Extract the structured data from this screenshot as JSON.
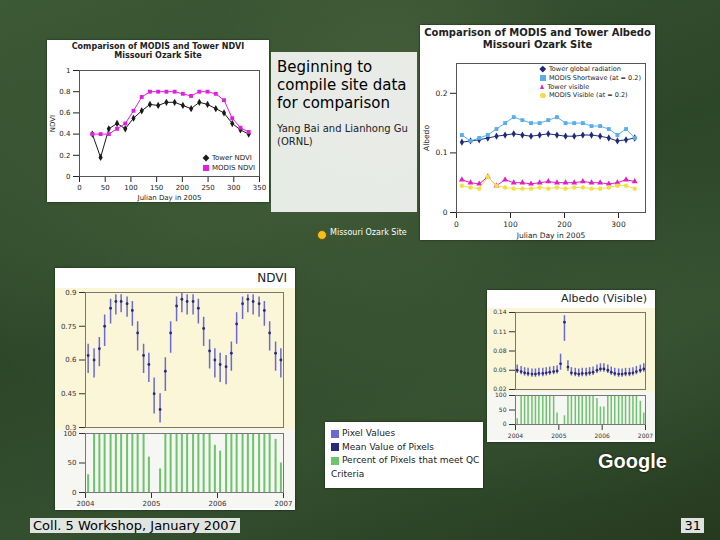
{
  "chart_data": [
    {
      "type": "line",
      "title": "Comparison of MODIS and Tower NDVI",
      "subtitle": "Missouri Ozark Site",
      "xlabel": "Julian Day in 2005",
      "ylabel": "NDVI",
      "x": [
        25,
        41,
        57,
        73,
        89,
        105,
        121,
        137,
        153,
        169,
        185,
        201,
        217,
        233,
        249,
        265,
        281,
        297,
        313,
        329
      ],
      "series": [
        {
          "name": "Tower NDVI",
          "color": "#1a1a1a",
          "marker": "diamond",
          "line_style": "solid",
          "values": [
            0.4,
            0.18,
            0.45,
            0.5,
            0.45,
            0.55,
            0.62,
            0.68,
            0.67,
            0.7,
            0.7,
            0.67,
            0.64,
            0.7,
            0.68,
            0.64,
            0.6,
            0.5,
            0.44,
            0.4
          ]
        },
        {
          "name": "MODIS NDVI",
          "color": "#e020e0",
          "marker": "square",
          "line_style": "solid",
          "values": [
            0.4,
            0.4,
            0.4,
            0.45,
            0.5,
            0.62,
            0.75,
            0.8,
            0.8,
            0.8,
            0.8,
            0.78,
            0.76,
            0.8,
            0.8,
            0.78,
            0.72,
            0.55,
            0.46,
            0.42
          ]
        }
      ],
      "xlim": [
        0,
        350
      ],
      "xticks": [
        0,
        50,
        100,
        150,
        200,
        250,
        300,
        350
      ],
      "ylim": [
        0,
        1
      ],
      "yticks": [
        0,
        0.2,
        0.4,
        0.6,
        0.8,
        1
      ],
      "grid": false,
      "legend": "lower right"
    },
    {
      "type": "line",
      "title": "Comparison of MODIS and Tower Albedo",
      "subtitle": "Missouri Ozark Site",
      "xlabel": "Julian Day in 2005",
      "ylabel": "Albedo",
      "x": [
        10,
        26,
        42,
        58,
        74,
        90,
        106,
        122,
        138,
        154,
        170,
        186,
        202,
        218,
        234,
        250,
        266,
        282,
        298,
        314,
        330
      ],
      "series": [
        {
          "name": "Tower global radiation",
          "color": "#1f2a7a",
          "marker": "diamond",
          "line_style": "solid",
          "values": [
            0.118,
            0.12,
            0.122,
            0.125,
            0.128,
            0.13,
            0.132,
            0.13,
            0.128,
            0.13,
            0.132,
            0.13,
            0.128,
            0.128,
            0.13,
            0.13,
            0.128,
            0.125,
            0.12,
            0.122,
            0.125
          ]
        },
        {
          "name": "MODIS Shortwave (at = 0.2)",
          "color": "#5aaee8",
          "marker": "square",
          "line_style": "solid",
          "values": [
            0.13,
            0.12,
            0.125,
            0.13,
            0.14,
            0.15,
            0.16,
            0.155,
            0.15,
            0.15,
            0.155,
            0.16,
            0.15,
            0.15,
            0.15,
            0.145,
            0.145,
            0.14,
            0.13,
            0.14,
            0.125
          ]
        },
        {
          "name": "Tower visible",
          "color": "#e020c0",
          "marker": "triangle",
          "line_style": "solid",
          "values": [
            0.055,
            0.05,
            0.048,
            0.06,
            0.045,
            0.055,
            0.05,
            0.05,
            0.048,
            0.05,
            0.052,
            0.05,
            0.05,
            0.05,
            0.052,
            0.05,
            0.05,
            0.048,
            0.05,
            0.055,
            0.052
          ]
        },
        {
          "name": "MODIS Visible (at = 0.2)",
          "color": "#f0e040",
          "marker": "circle",
          "line_style": "solid",
          "values": [
            0.045,
            0.042,
            0.04,
            0.06,
            0.045,
            0.042,
            0.04,
            0.04,
            0.04,
            0.042,
            0.04,
            0.042,
            0.04,
            0.042,
            0.042,
            0.04,
            0.04,
            0.042,
            0.045,
            0.045,
            0.04
          ]
        }
      ],
      "xlim": [
        0,
        350
      ],
      "xticks": [
        0,
        100,
        200,
        300
      ],
      "ylim": [
        0,
        0.25
      ],
      "yticks": [
        0,
        0.1,
        0.2
      ],
      "grid": false,
      "legend": "upper right"
    },
    {
      "type": "pixels",
      "title": "NDVI",
      "x": [
        2004.04,
        2004.13,
        2004.21,
        2004.29,
        2004.38,
        2004.46,
        2004.54,
        2004.63,
        2004.71,
        2004.79,
        2004.88,
        2004.96,
        2005.04,
        2005.13,
        2005.21,
        2005.29,
        2005.38,
        2005.46,
        2005.54,
        2005.63,
        2005.71,
        2005.79,
        2005.88,
        2005.96,
        2006.04,
        2006.13,
        2006.21,
        2006.29,
        2006.38,
        2006.46,
        2006.54,
        2006.63,
        2006.71,
        2006.79,
        2006.88,
        2006.96
      ],
      "series": [
        {
          "name": "Pixel Values",
          "type": "range",
          "color": "#6a6ad0",
          "low": [
            0.54,
            0.52,
            0.57,
            0.66,
            0.76,
            0.8,
            0.81,
            0.79,
            0.75,
            0.64,
            0.54,
            0.5,
            0.36,
            0.32,
            0.46,
            0.63,
            0.77,
            0.81,
            0.8,
            0.8,
            0.76,
            0.66,
            0.56,
            0.52,
            0.5,
            0.49,
            0.55,
            0.67,
            0.78,
            0.81,
            0.8,
            0.79,
            0.75,
            0.64,
            0.55,
            0.52
          ],
          "high": [
            0.67,
            0.65,
            0.7,
            0.8,
            0.87,
            0.89,
            0.89,
            0.88,
            0.86,
            0.77,
            0.67,
            0.63,
            0.52,
            0.45,
            0.61,
            0.77,
            0.88,
            0.9,
            0.89,
            0.89,
            0.87,
            0.79,
            0.69,
            0.65,
            0.63,
            0.62,
            0.68,
            0.81,
            0.88,
            0.89,
            0.89,
            0.88,
            0.86,
            0.77,
            0.68,
            0.65
          ]
        },
        {
          "name": "Mean Value of Pixels",
          "type": "scatter",
          "color": "#2a2a7a",
          "values": [
            0.62,
            0.6,
            0.65,
            0.75,
            0.83,
            0.86,
            0.86,
            0.85,
            0.82,
            0.72,
            0.62,
            0.58,
            0.45,
            0.38,
            0.55,
            0.72,
            0.84,
            0.87,
            0.86,
            0.86,
            0.83,
            0.74,
            0.64,
            0.6,
            0.58,
            0.57,
            0.63,
            0.76,
            0.85,
            0.87,
            0.86,
            0.85,
            0.82,
            0.72,
            0.63,
            0.6
          ]
        },
        {
          "name": "Percent of Pixels that meet QC Criteria",
          "type": "bar",
          "axis": "y2",
          "color": "#6cc46c",
          "values": [
            30,
            100,
            100,
            100,
            100,
            100,
            100,
            100,
            100,
            100,
            100,
            60,
            0,
            40,
            100,
            100,
            100,
            100,
            100,
            100,
            100,
            100,
            100,
            80,
            70,
            100,
            100,
            100,
            100,
            100,
            100,
            100,
            100,
            100,
            90,
            50
          ]
        }
      ],
      "xlim": [
        2004,
        2007
      ],
      "xticks": [
        2004,
        2005,
        2006,
        2007
      ],
      "ylim": [
        0.3,
        0.9
      ],
      "yticks": [
        0.3,
        0.45,
        0.6,
        0.75,
        0.9
      ],
      "y2lim": [
        0,
        100
      ],
      "y2ticks": [
        0,
        50,
        100
      ],
      "grid": false,
      "legend": "below"
    },
    {
      "type": "pixels",
      "title": "Albedo (Visible)",
      "x": [
        2004.04,
        2004.13,
        2004.21,
        2004.29,
        2004.38,
        2004.46,
        2004.54,
        2004.63,
        2004.71,
        2004.79,
        2004.88,
        2004.96,
        2005.04,
        2005.13,
        2005.21,
        2005.29,
        2005.38,
        2005.46,
        2005.54,
        2005.63,
        2005.71,
        2005.79,
        2005.88,
        2005.96,
        2006.04,
        2006.13,
        2006.21,
        2006.29,
        2006.38,
        2006.46,
        2006.54,
        2006.63,
        2006.71,
        2006.79,
        2006.88,
        2006.96
      ],
      "series": [
        {
          "type": "range",
          "color": "#6a6ad0",
          "low": [
            0.045,
            0.043,
            0.041,
            0.04,
            0.039,
            0.039,
            0.04,
            0.04,
            0.041,
            0.042,
            0.043,
            0.044,
            0.05,
            0.095,
            0.048,
            0.041,
            0.04,
            0.039,
            0.04,
            0.04,
            0.041,
            0.042,
            0.045,
            0.047,
            0.047,
            0.045,
            0.042,
            0.04,
            0.039,
            0.039,
            0.04,
            0.04,
            0.041,
            0.043,
            0.045,
            0.047
          ],
          "high": [
            0.058,
            0.056,
            0.054,
            0.053,
            0.052,
            0.052,
            0.053,
            0.053,
            0.054,
            0.055,
            0.056,
            0.057,
            0.075,
            0.135,
            0.065,
            0.054,
            0.053,
            0.052,
            0.053,
            0.053,
            0.054,
            0.055,
            0.058,
            0.06,
            0.06,
            0.058,
            0.055,
            0.053,
            0.052,
            0.052,
            0.053,
            0.053,
            0.054,
            0.056,
            0.058,
            0.06
          ]
        },
        {
          "type": "scatter",
          "color": "#2a2a7a",
          "values": [
            0.05,
            0.048,
            0.046,
            0.045,
            0.044,
            0.044,
            0.045,
            0.045,
            0.046,
            0.047,
            0.048,
            0.049,
            0.06,
            0.125,
            0.055,
            0.046,
            0.045,
            0.044,
            0.045,
            0.045,
            0.046,
            0.047,
            0.05,
            0.052,
            0.052,
            0.05,
            0.047,
            0.045,
            0.044,
            0.044,
            0.045,
            0.045,
            0.046,
            0.048,
            0.05,
            0.052
          ]
        },
        {
          "type": "bar",
          "axis": "y2",
          "color": "#6cc46c",
          "values": [
            20,
            100,
            100,
            100,
            100,
            100,
            100,
            100,
            100,
            100,
            100,
            40,
            0,
            30,
            100,
            100,
            100,
            100,
            100,
            100,
            100,
            100,
            90,
            60,
            60,
            100,
            100,
            100,
            100,
            100,
            100,
            100,
            100,
            100,
            80,
            40
          ]
        }
      ],
      "xlim": [
        2004,
        2007
      ],
      "xticks": [
        2004,
        2005,
        2006,
        2007
      ],
      "ylim": [
        0.02,
        0.14
      ],
      "yticks": [
        0.02,
        0.05,
        0.08,
        0.11,
        0.14
      ],
      "y2lim": [
        0,
        100
      ],
      "y2ticks": [
        0,
        50,
        100
      ],
      "grid": false
    }
  ],
  "slide": {
    "callout": "Beginning to compile site data for comparison",
    "authors": "Yang Bai and Lianhong Gu (ORNL)",
    "site": "Missouri Ozark Site",
    "map_credit": "Google",
    "footer": "Coll. 5 Workshop, January 2007",
    "page": 31
  }
}
